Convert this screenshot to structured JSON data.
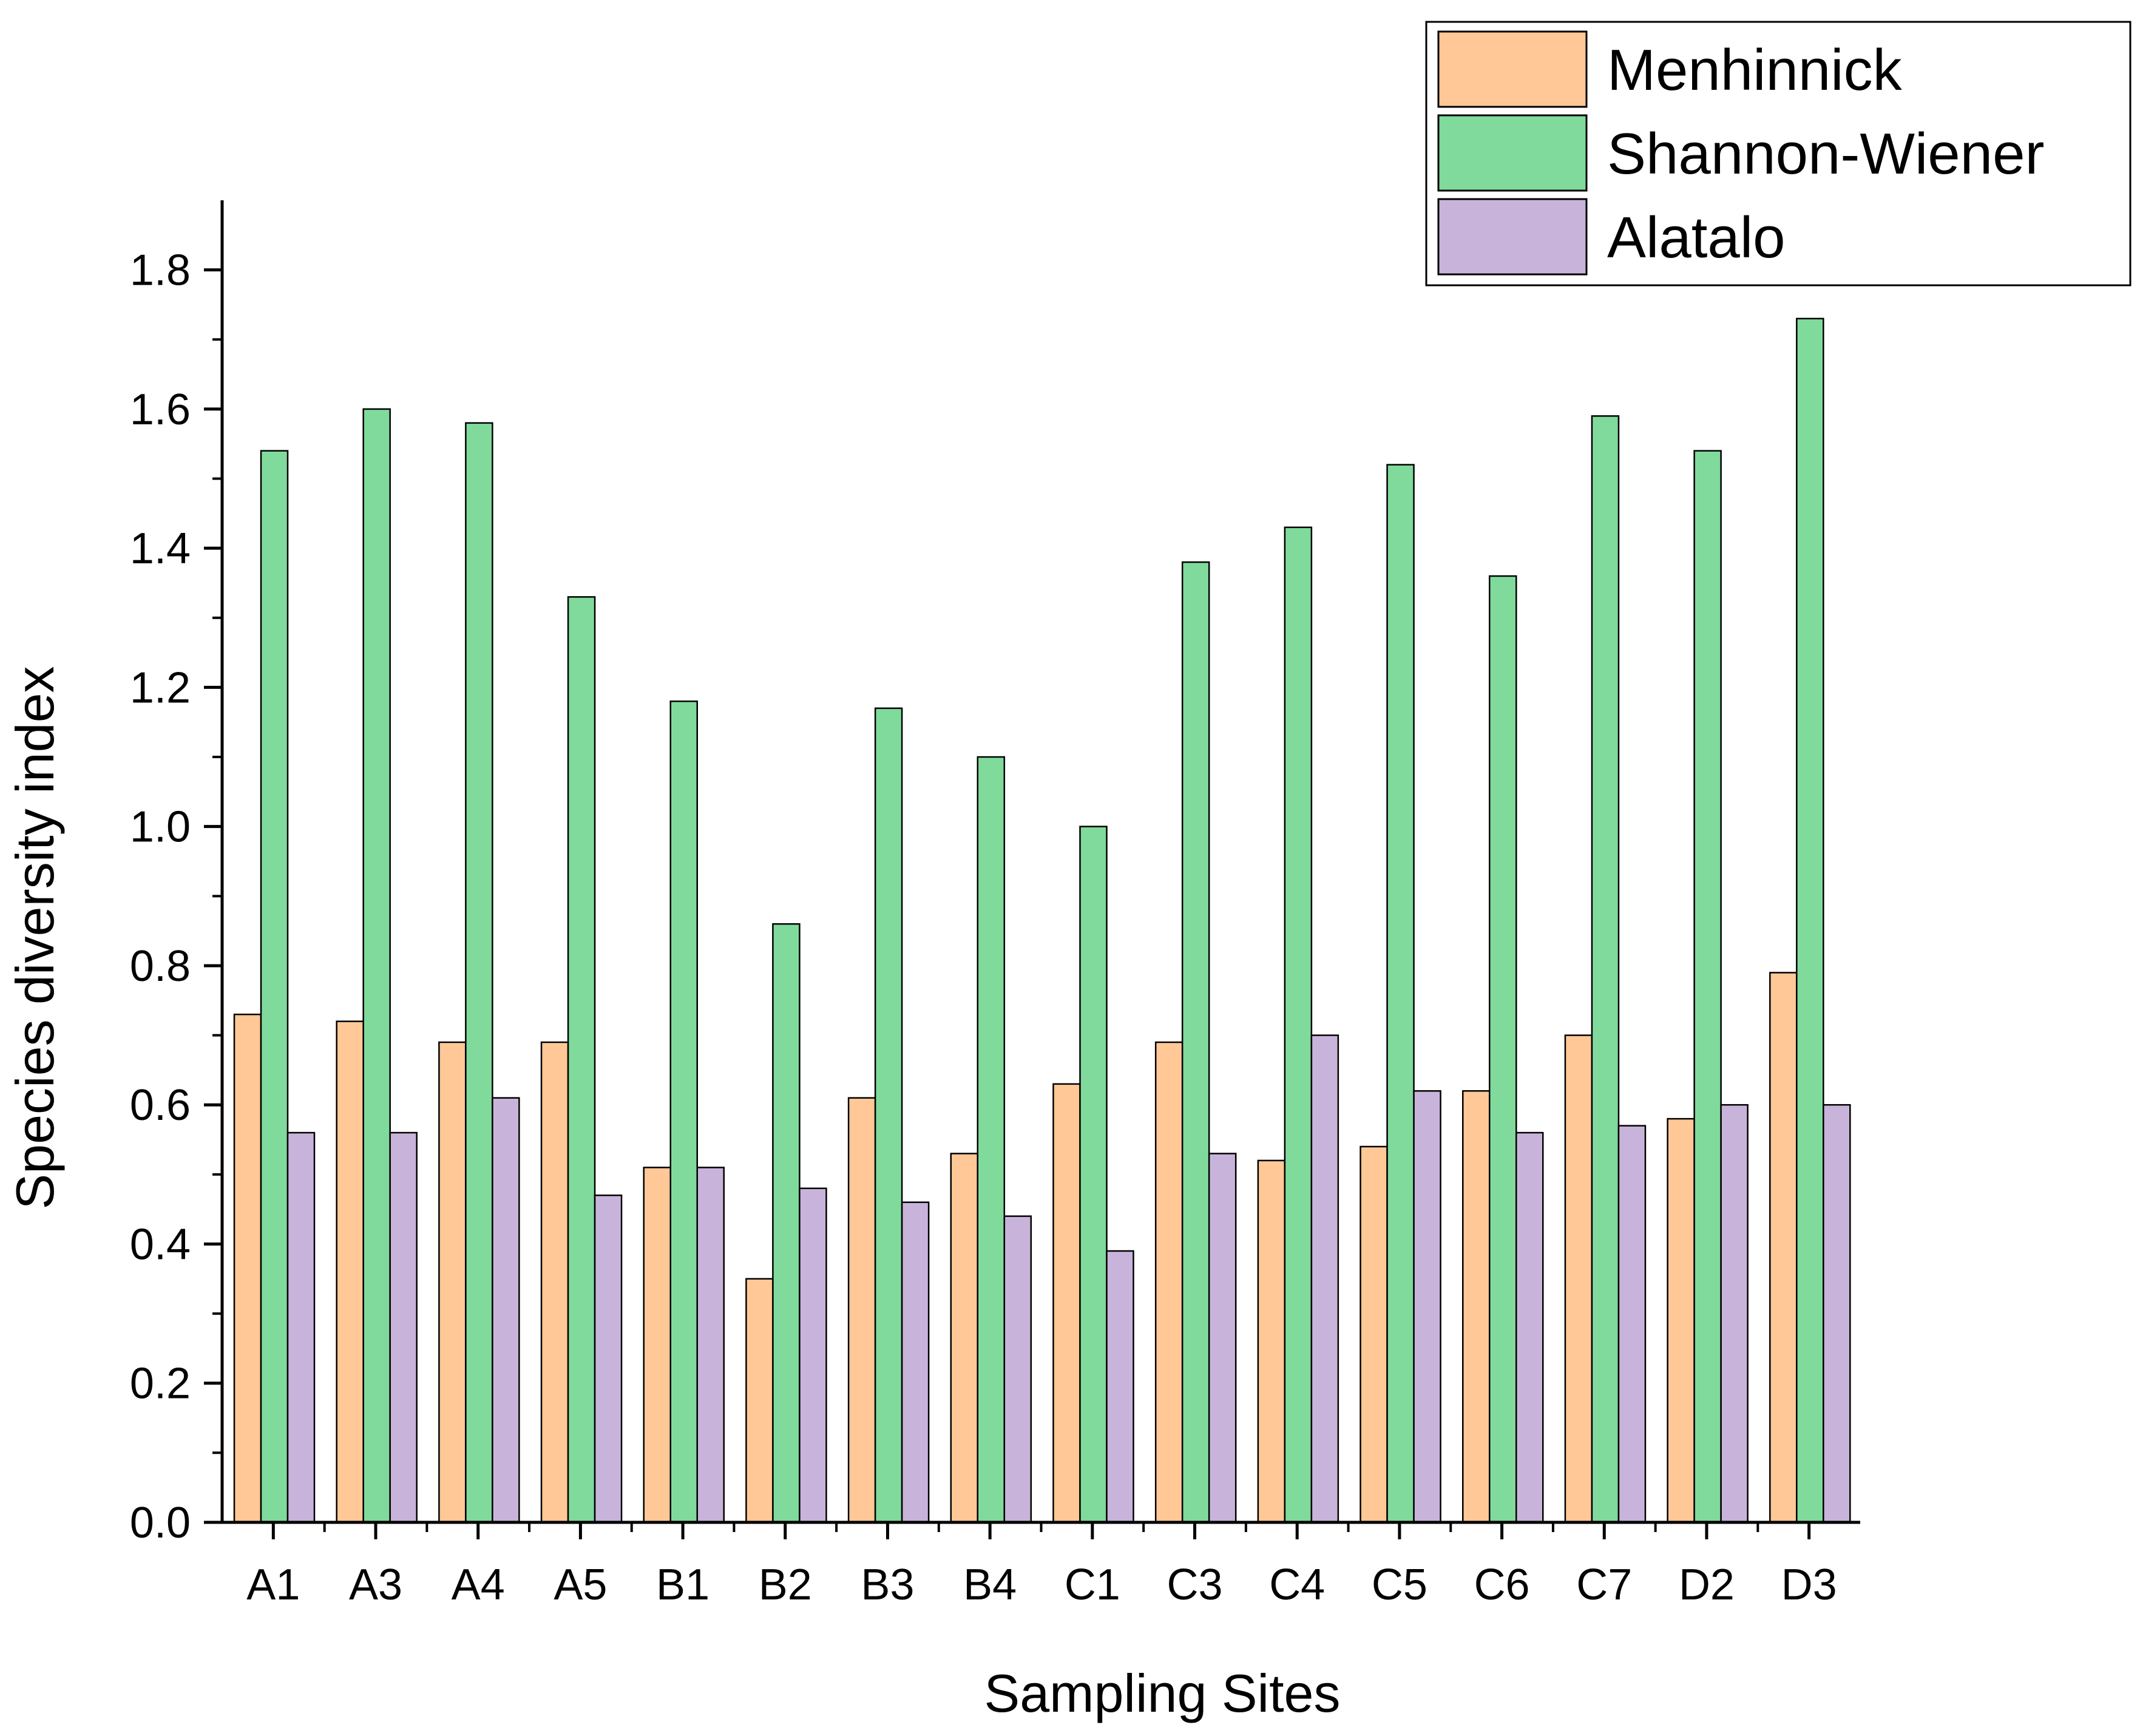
{
  "chart_data": {
    "type": "bar",
    "title": "",
    "xlabel": "Sampling Sites",
    "ylabel": "Species diversity index",
    "ylim": [
      0,
      1.9
    ],
    "yticks": [
      "0.0",
      "0.2",
      "0.4",
      "0.6",
      "0.8",
      "1.0",
      "1.2",
      "1.4",
      "1.6",
      "1.8"
    ],
    "grid": false,
    "legend_position": "top-right",
    "categories": [
      "A1",
      "A3",
      "A4",
      "A5",
      "B1",
      "B2",
      "B3",
      "B4",
      "C1",
      "C3",
      "C4",
      "C5",
      "C6",
      "C7",
      "D2",
      "D3"
    ],
    "series": [
      {
        "name": "Menhinnick",
        "color": "#FFC896",
        "values": [
          0.73,
          0.72,
          0.69,
          0.69,
          0.51,
          0.35,
          0.61,
          0.53,
          0.63,
          0.69,
          0.52,
          0.54,
          0.62,
          0.7,
          0.58,
          0.79
        ]
      },
      {
        "name": "Shannon-Wiener",
        "color": "#7FDA9C",
        "values": [
          1.54,
          1.6,
          1.58,
          1.33,
          1.18,
          0.86,
          1.17,
          1.1,
          1.0,
          1.38,
          1.43,
          1.52,
          1.36,
          1.59,
          1.54,
          1.73
        ]
      },
      {
        "name": "Alatalo",
        "color": "#C8B4DA",
        "values": [
          0.56,
          0.56,
          0.61,
          0.47,
          0.51,
          0.48,
          0.46,
          0.44,
          0.39,
          0.53,
          0.7,
          0.62,
          0.56,
          0.57,
          0.6,
          0.6
        ]
      }
    ]
  }
}
